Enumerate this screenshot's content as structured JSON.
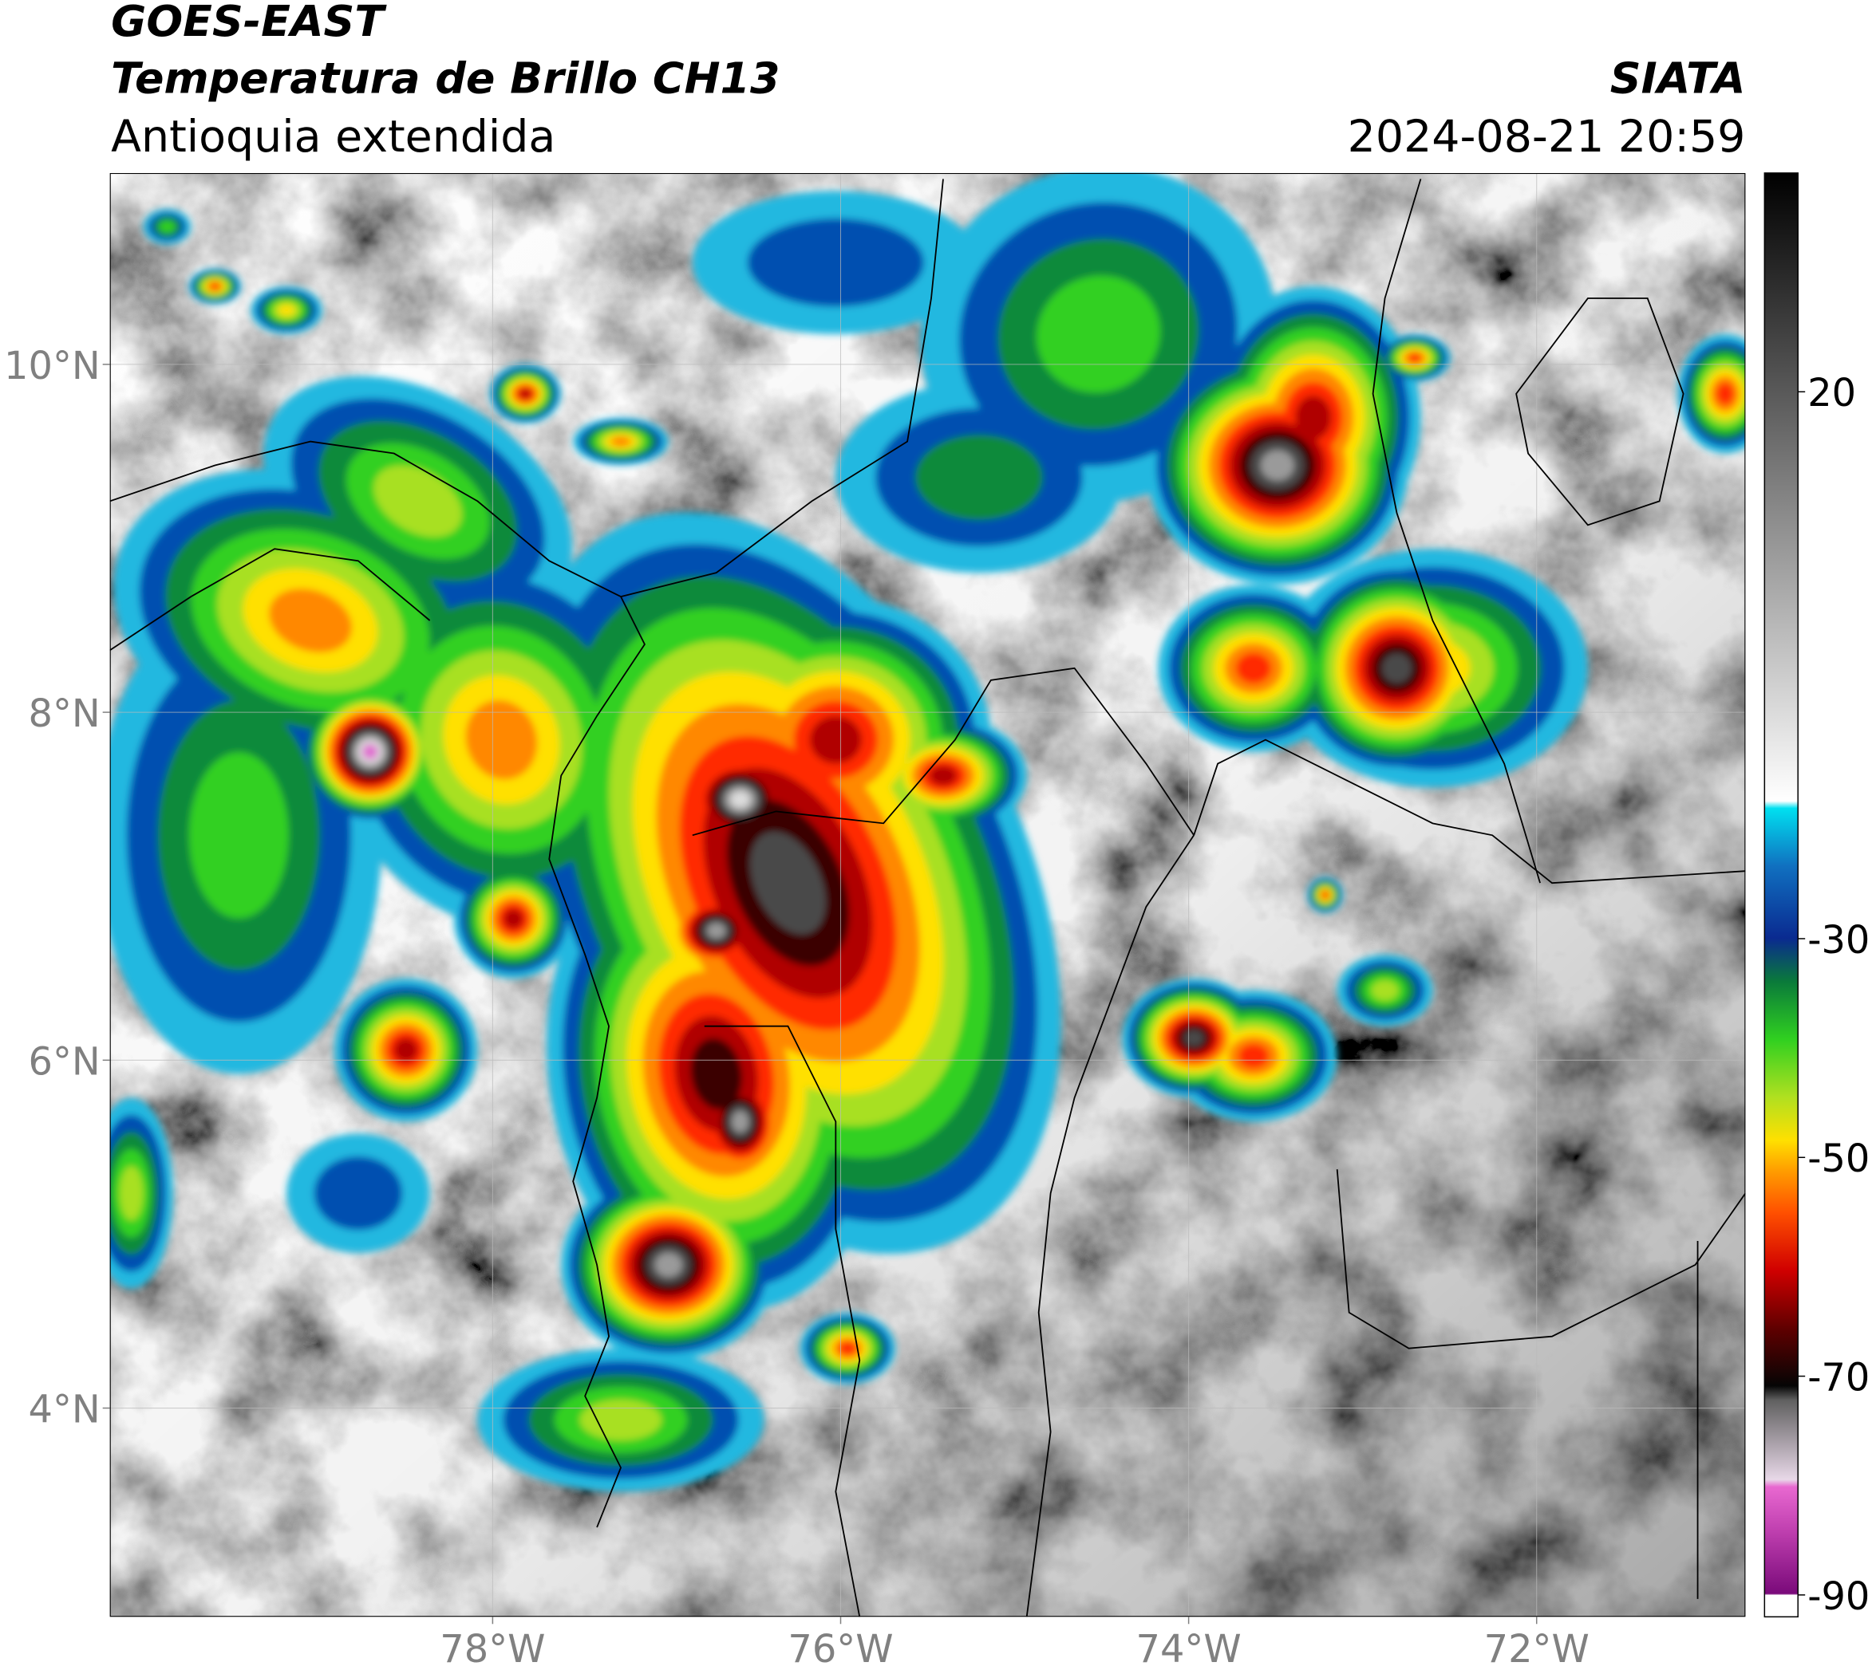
{
  "header": {
    "satellite": "GOES-EAST",
    "product": "Temperatura de Brillo CH13",
    "region": "Antioquia extendida",
    "source": "SIATA",
    "datetime": "2024-08-21 20:59"
  },
  "map": {
    "xlim": [
      -80.2,
      -70.8
    ],
    "ylim": [
      2.8,
      11.1
    ],
    "xticks": [
      {
        "value": -78,
        "label": "78°W"
      },
      {
        "value": -76,
        "label": "76°W"
      },
      {
        "value": -74,
        "label": "74°W"
      },
      {
        "value": -72,
        "label": "72°W"
      }
    ],
    "yticks": [
      {
        "value": 4,
        "label": "4°N"
      },
      {
        "value": 6,
        "label": "6°N"
      },
      {
        "value": 8,
        "label": "8°N"
      },
      {
        "value": 10,
        "label": "10°N"
      }
    ],
    "grid": true
  },
  "colorbar": {
    "lim": [
      -92,
      40
    ],
    "ticks": [
      20,
      -30,
      -50,
      -70,
      -90
    ]
  }
}
